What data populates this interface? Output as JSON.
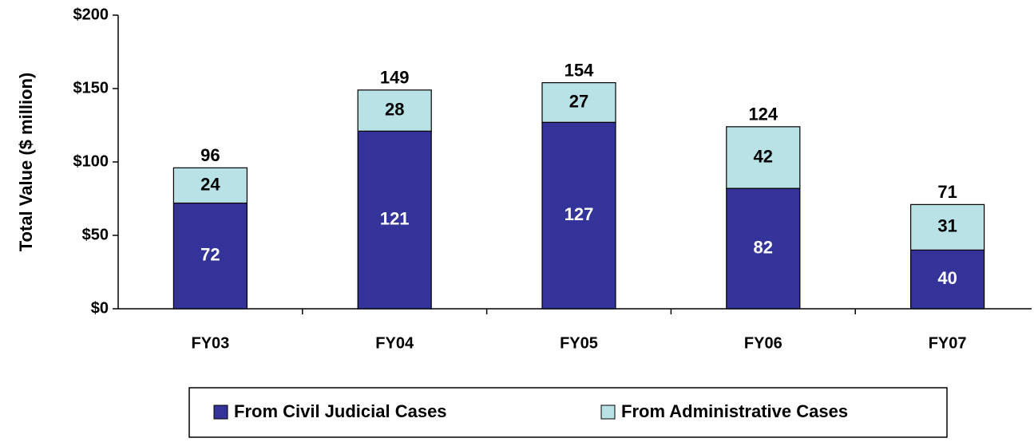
{
  "chart_data": {
    "type": "stacked_bar",
    "y_label": "Total Value ($ million)",
    "categories": [
      "FY03",
      "FY04",
      "FY05",
      "FY06",
      "FY07"
    ],
    "series": [
      {
        "name": "From Civil Judicial Cases",
        "color": "#333399",
        "label_color": "#ffffff",
        "values": [
          72,
          121,
          127,
          82,
          40
        ]
      },
      {
        "name": "From Administrative Cases",
        "color": "#b8e2e6",
        "label_color": "#000000",
        "values": [
          24,
          28,
          27,
          42,
          31
        ]
      }
    ],
    "totals": [
      96,
      149,
      154,
      124,
      71
    ],
    "ylim": [
      0,
      200
    ],
    "yticks": [
      {
        "value": 0,
        "label": "$0"
      },
      {
        "value": 50,
        "label": "$50"
      },
      {
        "value": 100,
        "label": "$100"
      },
      {
        "value": 150,
        "label": "$150"
      },
      {
        "value": 200,
        "label": "$200"
      }
    ],
    "grid": false,
    "legend": "bottom"
  }
}
